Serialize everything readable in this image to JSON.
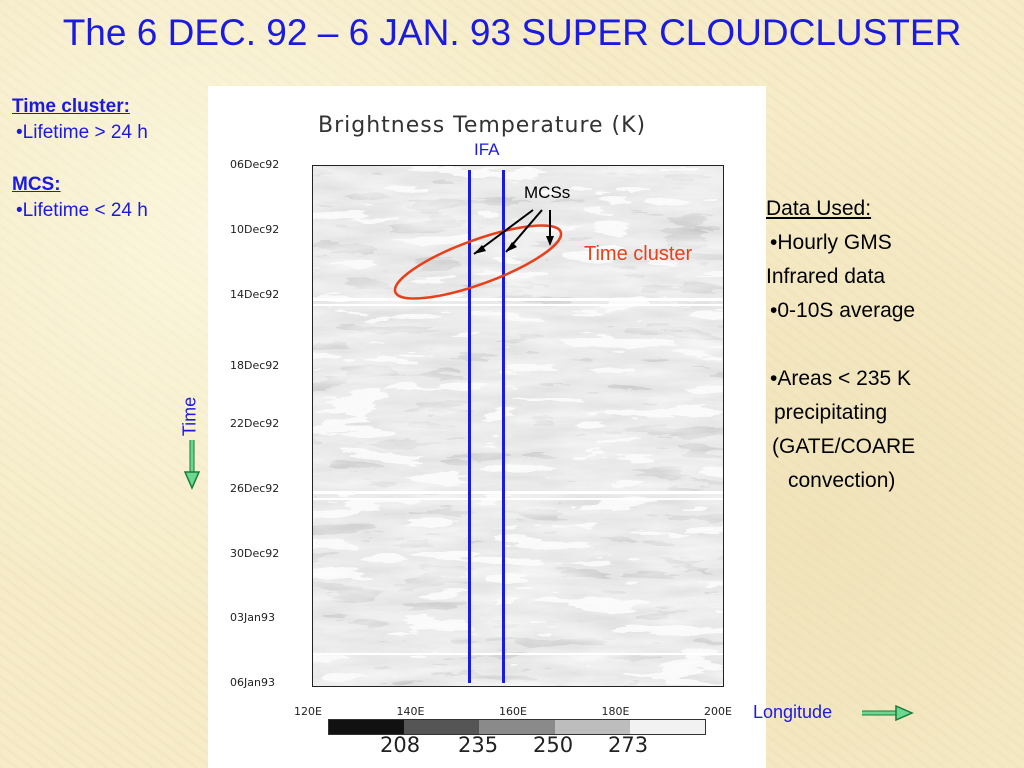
{
  "title": "The 6 DEC. 92 – 6 JAN. 93 SUPER CLOUDCLUSTER",
  "left": {
    "time_cluster_header": "Time cluster:",
    "time_cluster_item": "•Lifetime > 24 h",
    "mcs_header": "MCS:",
    "mcs_item": "•Lifetime < 24 h"
  },
  "right": {
    "header": "Data Used:",
    "line1": "•Hourly GMS",
    "line2": "Infrared data",
    "line3": "•0-10S average",
    "line4": "•Areas < 235 K",
    "line5": "precipitating",
    "line6": "(GATE/COARE",
    "line7": "convection)"
  },
  "plot": {
    "title": "Brightness Temperature (K)",
    "yticks": [
      "06Dec92",
      "10Dec92",
      "14Dec92",
      "18Dec92",
      "22Dec92",
      "26Dec92",
      "30Dec92",
      "03Jan93",
      "06Jan93"
    ],
    "xticks": [
      "120E",
      "140E",
      "160E",
      "180E",
      "200E"
    ],
    "colorbar_labels": [
      "208",
      "235",
      "250",
      "273"
    ],
    "colorbar_colors": [
      "#111111",
      "#555555",
      "#8a8a8a",
      "#bdbdbd",
      "#f2f2f2"
    ]
  },
  "annotations": {
    "ifa": "IFA",
    "mcss": "MCSs",
    "time_cluster": "Time cluster",
    "time_axis": "Time",
    "longitude": "Longitude",
    "blue": "#1a1ae0",
    "red": "#e8401a",
    "green": "#2aa860"
  }
}
